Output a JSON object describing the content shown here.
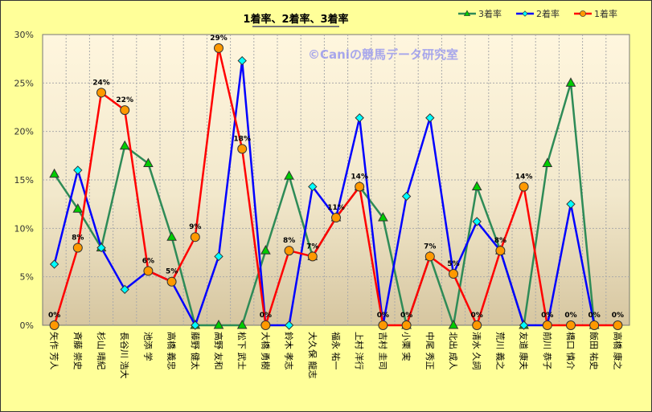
{
  "chart_data": {
    "type": "line",
    "title": "1着率、2着率、3着率",
    "watermark": "©Caniの競馬データ研究室",
    "categories": [
      "矢作 芳人",
      "斉藤 崇史",
      "杉山 晴紀",
      "長谷川 浩大",
      "池添 学",
      "高橋 義忠",
      "藤野 健太",
      "高野 友和",
      "松下 武士",
      "大橋 勇樹",
      "鈴木 孝志",
      "大久保 龍志",
      "福永 祐一",
      "上村 洋行",
      "吉村 圭司",
      "小栗 実",
      "中尾 秀正",
      "北出 成人",
      "清水 久詞",
      "荒川 義之",
      "友道 康夫",
      "前川 恭子",
      "橋口 慎介",
      "飯田 祐史",
      "高橋 康之"
    ],
    "ylim": [
      0,
      30
    ],
    "yticks": [
      "0%",
      "5%",
      "10%",
      "15%",
      "20%",
      "25%",
      "30%"
    ],
    "grid": true,
    "legend_position": "top-right",
    "series": [
      {
        "name": "3着率",
        "color": "#2E8B57",
        "marker": "triangle",
        "marker_color": "#00CC00",
        "values": [
          15.6,
          12.0,
          8.0,
          18.5,
          16.7,
          9.1,
          0,
          0,
          0,
          7.7,
          15.4,
          7.1,
          11.1,
          14.3,
          11.1,
          0,
          7.1,
          0,
          14.3,
          7.7,
          0,
          16.7,
          25.0,
          0,
          null
        ]
      },
      {
        "name": "2着率",
        "color": "#0000FF",
        "marker": "diamond",
        "marker_color": "#00FFFF",
        "values": [
          6.3,
          16.0,
          8.0,
          3.7,
          5.6,
          4.5,
          0,
          7.1,
          27.3,
          0,
          0,
          14.3,
          11.1,
          21.4,
          0,
          13.3,
          21.4,
          5.3,
          10.7,
          7.7,
          0,
          0,
          12.5,
          0,
          null
        ]
      },
      {
        "name": "1着率",
        "color": "#FF0000",
        "marker": "circle",
        "marker_color": "#FF9900",
        "values": [
          0,
          8.0,
          24.0,
          22.2,
          5.6,
          4.5,
          9.1,
          28.6,
          18.2,
          0,
          7.7,
          7.1,
          11.1,
          14.3,
          0,
          0,
          7.1,
          5.3,
          0,
          7.7,
          14.3,
          0,
          0,
          0,
          0
        ],
        "data_labels": [
          "0%",
          "8%",
          "24%",
          "22%",
          "6%",
          "5%",
          "9%",
          "29%",
          "18%",
          "0%",
          "8%",
          "7%",
          "11%",
          "14%",
          "0%",
          "0%",
          "7%",
          "5%",
          "0%",
          "8%",
          "14%",
          "0%",
          "0%",
          "0%",
          "0%"
        ]
      }
    ]
  }
}
